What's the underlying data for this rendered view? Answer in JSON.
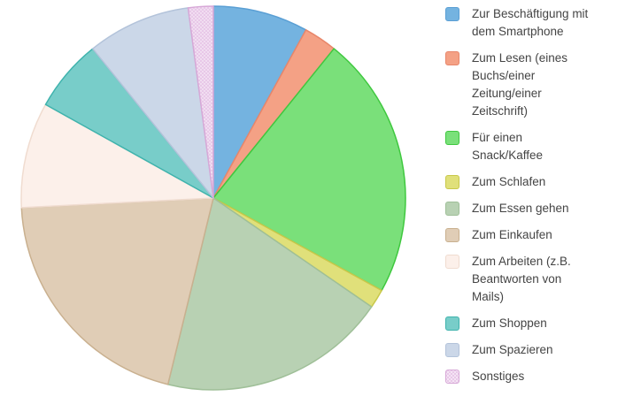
{
  "chart_data": {
    "type": "pie",
    "title": "",
    "legend_position": "right",
    "series": [
      {
        "name": "Zur Beschäftigung mit dem Smartphone",
        "value": 8.0,
        "color": "#74b3e0",
        "border": "#5a9fd4"
      },
      {
        "name": "Zum Lesen (eines Buchs/einer Zeitung/einer Zeitschrift)",
        "value": 2.8,
        "color": "#f4a185",
        "border": "#e8866a"
      },
      {
        "name": "Für einen Snack/Kaffee",
        "value": 22.2,
        "color": "#7ae07a",
        "border": "#3fc83f"
      },
      {
        "name": "Zum Schlafen",
        "value": 1.6,
        "color": "#e0e07a",
        "border": "#c8c84a"
      },
      {
        "name": "Zum Essen gehen",
        "value": 19.2,
        "color": "#b8d1b3",
        "border": "#9fbf98"
      },
      {
        "name": "Zum Einkaufen",
        "value": 20.4,
        "color": "#e0cdb6",
        "border": "#c9b08f"
      },
      {
        "name": "Zum Arbeiten (z.B. Beantworten von Mails)",
        "value": 8.9,
        "color": "#fcf0ea",
        "border": "#f0dcd0"
      },
      {
        "name": "Zum Shoppen",
        "value": 6.1,
        "color": "#78cdc9",
        "border": "#3fb3ad"
      },
      {
        "name": "Zum Spazieren",
        "value": 8.7,
        "color": "#cbd7e8",
        "border": "#b3c3da"
      },
      {
        "name": "Sonstiges",
        "value": 2.1,
        "color": "#e8c8e8",
        "border": "#d7a8d7"
      }
    ]
  },
  "legend": {
    "items": [
      {
        "lines": [
          "Zur Beschäftigung mit",
          "dem Smartphone"
        ]
      },
      {
        "lines": [
          "Zum Lesen (eines",
          "Buchs/einer",
          "Zeitung/einer",
          "Zeitschrift)"
        ]
      },
      {
        "lines": [
          "Für einen",
          "Snack/Kaffee"
        ]
      },
      {
        "lines": [
          "Zum Schlafen"
        ]
      },
      {
        "lines": [
          "Zum Essen gehen"
        ]
      },
      {
        "lines": [
          "Zum Einkaufen"
        ]
      },
      {
        "lines": [
          "Zum Arbeiten (z.B.",
          "Beantworten von",
          "Mails)"
        ]
      },
      {
        "lines": [
          "Zum Shoppen"
        ]
      },
      {
        "lines": [
          "Zum Spazieren"
        ]
      },
      {
        "lines": [
          "Sonstiges"
        ]
      }
    ]
  }
}
